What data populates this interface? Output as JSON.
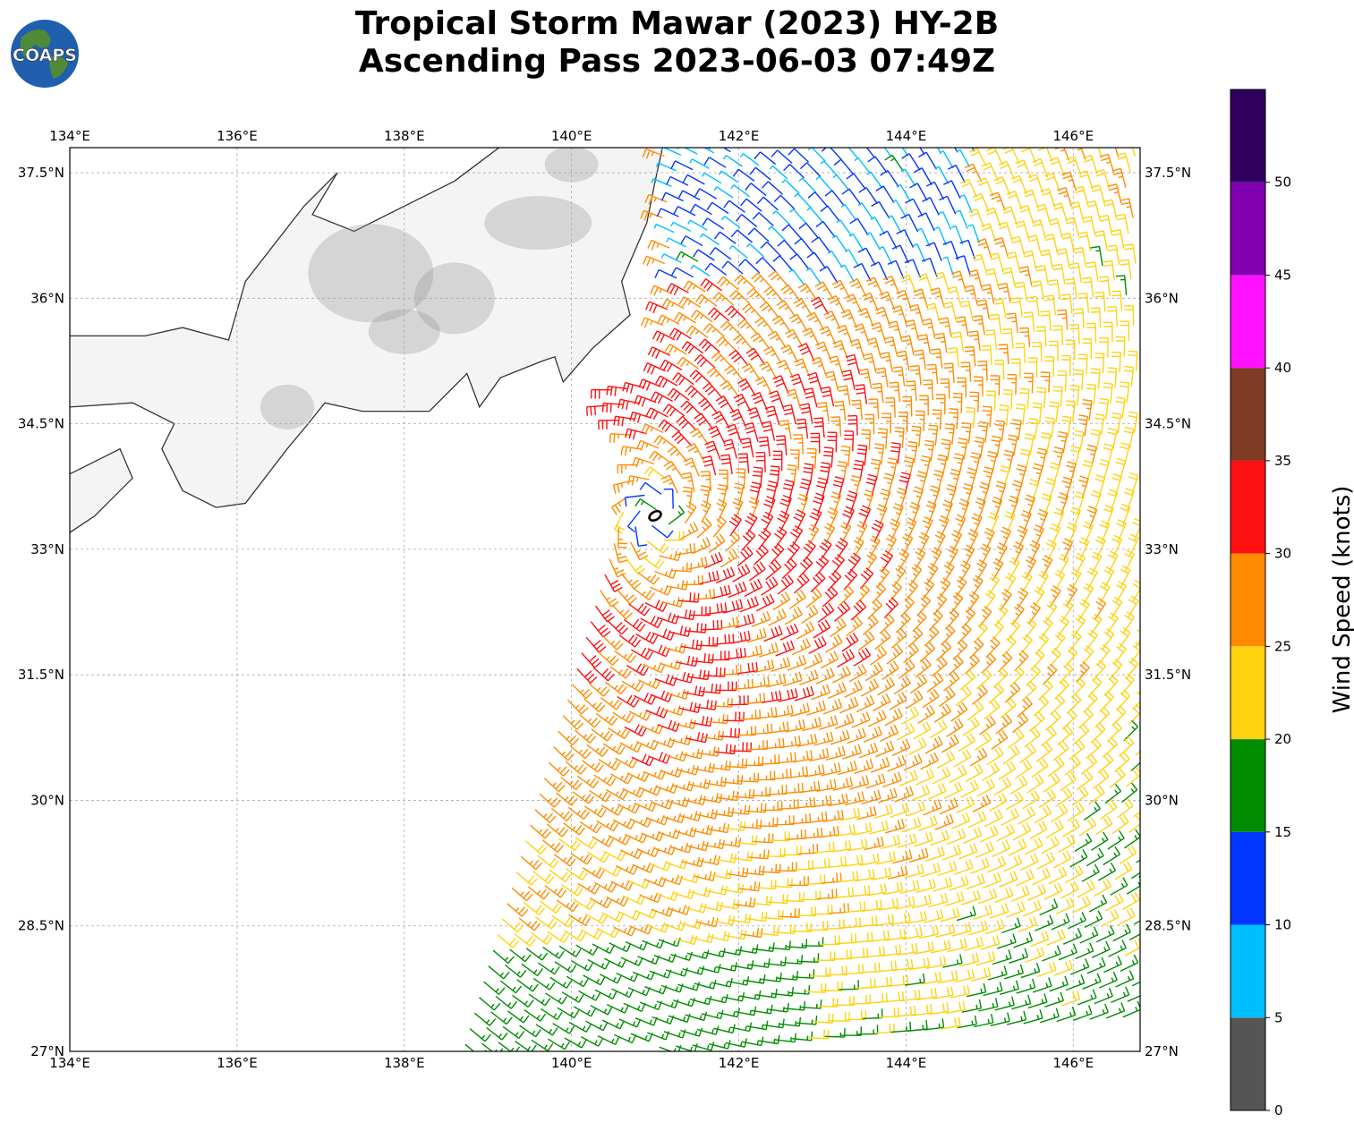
{
  "title": {
    "line1": "Tropical Storm Mawar (2023) HY-2B",
    "line2": "Ascending Pass 2023-06-03 07:49Z"
  },
  "logo": {
    "text": "COAPS",
    "icon": "globe-logo"
  },
  "map": {
    "lon_ticks": [
      "134°E",
      "136°E",
      "138°E",
      "140°E",
      "142°E",
      "144°E",
      "146°E"
    ],
    "lat_ticks": [
      "37.5°N",
      "36°N",
      "34.5°N",
      "33°N",
      "31.5°N",
      "30°N",
      "28.5°N",
      "27°N"
    ],
    "extent": {
      "lon_min": 134,
      "lon_max": 146.8,
      "lat_min": 27,
      "lat_max": 37.8
    },
    "storm_center": {
      "lon": 141.0,
      "lat": 33.4
    },
    "gridlines": true,
    "land_color": "#f4f4f4",
    "coast_color": "#333333"
  },
  "colorbar": {
    "label": "Wind Speed (knots)",
    "ticks": [
      "0",
      "5",
      "10",
      "15",
      "20",
      "25",
      "30",
      "35",
      "40",
      "45",
      "50"
    ],
    "bins": [
      {
        "min": 0,
        "max": 5,
        "color": "#555555"
      },
      {
        "min": 5,
        "max": 10,
        "color": "#00bfff"
      },
      {
        "min": 10,
        "max": 15,
        "color": "#0036ff"
      },
      {
        "min": 15,
        "max": 20,
        "color": "#008c00"
      },
      {
        "min": 20,
        "max": 25,
        "color": "#ffd20f"
      },
      {
        "min": 25,
        "max": 30,
        "color": "#ff8c00"
      },
      {
        "min": 30,
        "max": 35,
        "color": "#ff1010"
      },
      {
        "min": 35,
        "max": 40,
        "color": "#7f3b25"
      },
      {
        "min": 40,
        "max": 45,
        "color": "#ff10ff"
      },
      {
        "min": 45,
        "max": 50,
        "color": "#8000b0"
      },
      {
        "min": 50,
        "max": 55,
        "color": "#2f0060"
      }
    ]
  }
}
